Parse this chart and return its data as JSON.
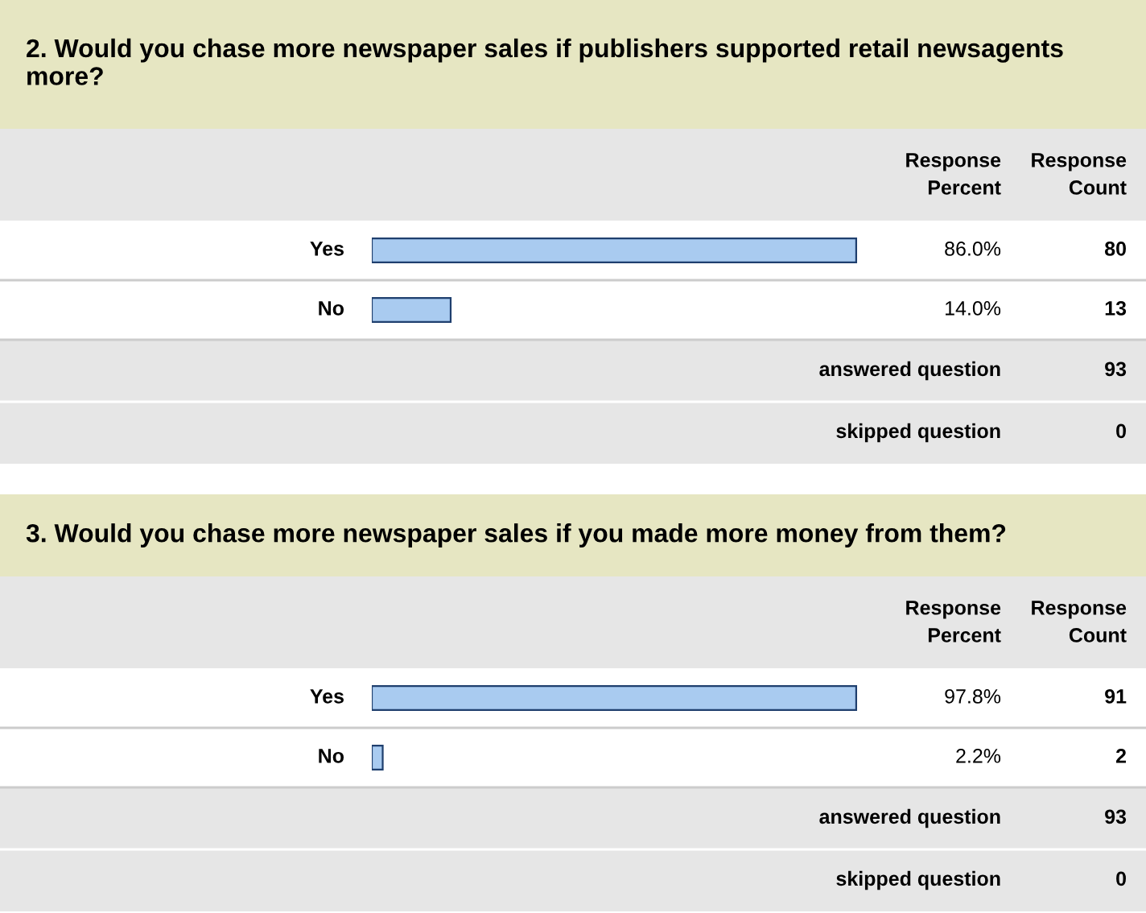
{
  "chart_data": [
    {
      "type": "bar",
      "orientation": "horizontal",
      "title": "2. Would you chase more newspaper sales if publishers supported retail newsagents more?",
      "categories": [
        "Yes",
        "No"
      ],
      "values": [
        86.0,
        14.0
      ],
      "value_labels": [
        "86.0%",
        "14.0%"
      ],
      "color": "#a9cbf0",
      "annotations": [
        "Response\nPercent",
        "Response\nCount",
        "80",
        "13",
        "answered question",
        "93",
        "skipped question",
        "0"
      ]
    },
    {
      "type": "bar",
      "orientation": "horizontal",
      "title": "3. Would you chase more newspaper sales if you made more money from them?",
      "categories": [
        "Yes",
        "No"
      ],
      "values": [
        97.8,
        2.2
      ],
      "value_labels": [
        "97.8%",
        "2.2%"
      ],
      "color": "#a9cbf0",
      "annotations": [
        "Response\nPercent",
        "Response\nCount",
        "91",
        "2",
        "answered question",
        "93",
        "skipped question",
        "0"
      ]
    }
  ]
}
